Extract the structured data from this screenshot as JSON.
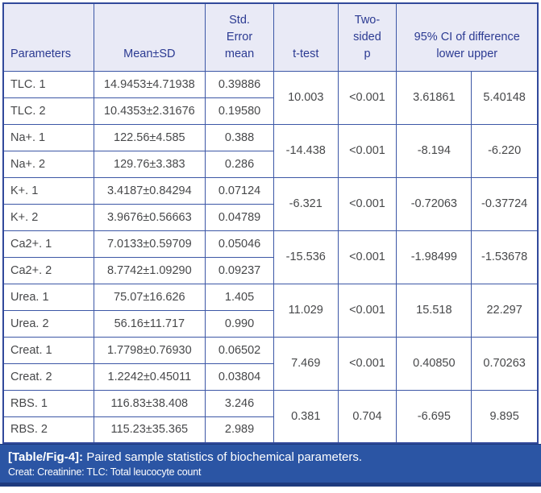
{
  "table": {
    "headers": {
      "parameters": "Parameters",
      "mean_sd": "Mean±SD",
      "std_error": "Std.\nError\nmean",
      "t_test": "t-test",
      "two_sided_p": "Two-\nsided\np",
      "ci": "95% CI of difference\nlower upper"
    },
    "groups": [
      {
        "rows": [
          {
            "param": "TLC. 1",
            "mean_sd": "14.9453±4.71938",
            "std_error": "0.39886"
          },
          {
            "param": "TLC. 2",
            "mean_sd": "10.4353±2.31676",
            "std_error": "0.19580"
          }
        ],
        "t_test": "10.003",
        "p": "<0.001",
        "lower": "3.61861",
        "upper": "5.40148"
      },
      {
        "rows": [
          {
            "param": "Na+. 1",
            "mean_sd": "122.56±4.585",
            "std_error": "0.388"
          },
          {
            "param": "Na+. 2",
            "mean_sd": "129.76±3.383",
            "std_error": "0.286"
          }
        ],
        "t_test": "-14.438",
        "p": "<0.001",
        "lower": "-8.194",
        "upper": "-6.220"
      },
      {
        "rows": [
          {
            "param": "K+. 1",
            "mean_sd": "3.4187±0.84294",
            "std_error": "0.07124"
          },
          {
            "param": "K+. 2",
            "mean_sd": "3.9676±0.56663",
            "std_error": "0.04789"
          }
        ],
        "t_test": "-6.321",
        "p": "<0.001",
        "lower": "-0.72063",
        "upper": "-0.37724"
      },
      {
        "rows": [
          {
            "param": "Ca2+. 1",
            "mean_sd": "7.0133±0.59709",
            "std_error": "0.05046"
          },
          {
            "param": "Ca2+. 2",
            "mean_sd": "8.7742±1.09290",
            "std_error": "0.09237"
          }
        ],
        "t_test": "-15.536",
        "p": "<0.001",
        "lower": "-1.98499",
        "upper": "-1.53678"
      },
      {
        "rows": [
          {
            "param": "Urea. 1",
            "mean_sd": "75.07±16.626",
            "std_error": "1.405"
          },
          {
            "param": "Urea. 2",
            "mean_sd": "56.16±11.717",
            "std_error": "0.990"
          }
        ],
        "t_test": "11.029",
        "p": "<0.001",
        "lower": "15.518",
        "upper": "22.297"
      },
      {
        "rows": [
          {
            "param": "Creat. 1",
            "mean_sd": "1.7798±0.76930",
            "std_error": "0.06502"
          },
          {
            "param": "Creat. 2",
            "mean_sd": "1.2242±0.45011",
            "std_error": "0.03804"
          }
        ],
        "t_test": "7.469",
        "p": "<0.001",
        "lower": "0.40850",
        "upper": "0.70263"
      },
      {
        "rows": [
          {
            "param": "RBS. 1",
            "mean_sd": "116.83±38.408",
            "std_error": "3.246"
          },
          {
            "param": "RBS. 2",
            "mean_sd": "115.23±35.365",
            "std_error": "2.989"
          }
        ],
        "t_test": "0.381",
        "p": "0.704",
        "lower": "-6.695",
        "upper": "9.895"
      }
    ]
  },
  "caption": {
    "label": "[Table/Fig-4]:",
    "text": " Paired sample statistics of biochemical parameters.",
    "footnote": "Creat: Creatinine: TLC: Total leucocyte count"
  },
  "colors": {
    "border": "#3c57a6",
    "header_bg": "#e9eaf6",
    "header_text": "#2b3a92",
    "body_text": "#47484a",
    "caption_bg": "#2b55a4",
    "caption_edge": "#1e3b7e"
  }
}
